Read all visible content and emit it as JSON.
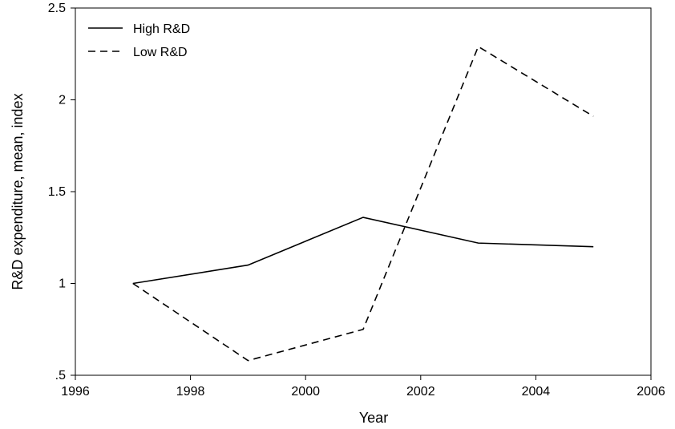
{
  "chart_data": {
    "type": "line",
    "xlabel": "Year",
    "ylabel": "R&D expenditure, mean, index",
    "xlim": [
      1996,
      2006
    ],
    "ylim": [
      0.5,
      2.5
    ],
    "xticks": [
      1996,
      1998,
      2000,
      2002,
      2004,
      2006
    ],
    "xtick_labels": [
      "1996",
      "1998",
      "2000",
      "2002",
      "2004",
      "2006"
    ],
    "yticks": [
      0.5,
      1,
      1.5,
      2,
      2.5
    ],
    "ytick_labels": [
      ".5",
      "1",
      "1.5",
      "2",
      "2.5"
    ],
    "grid": false,
    "legend_position": "top-left",
    "x": [
      1997,
      1999,
      2001,
      2003,
      2005
    ],
    "series": [
      {
        "name": "High R&D",
        "style": "solid",
        "values": [
          1.0,
          1.1,
          1.36,
          1.22,
          1.2
        ]
      },
      {
        "name": "Low R&D",
        "style": "dashed",
        "values": [
          1.0,
          0.58,
          0.75,
          2.29,
          1.91
        ]
      }
    ],
    "line_color": "#000000"
  }
}
